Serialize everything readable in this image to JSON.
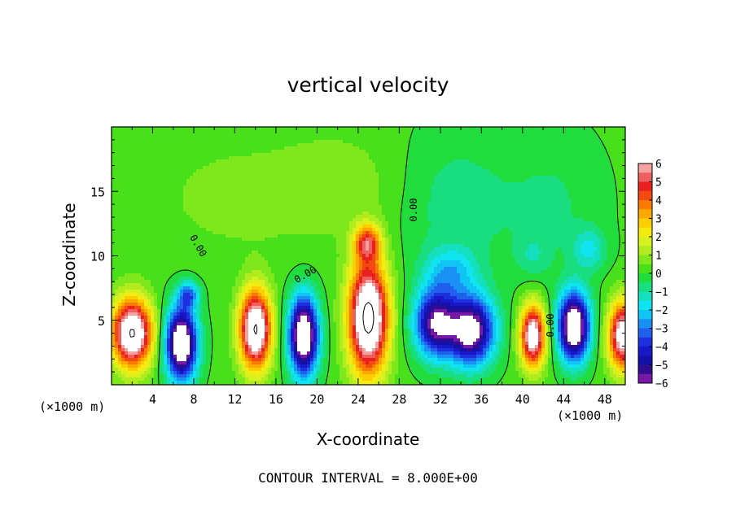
{
  "chart_data": {
    "type": "heatmap",
    "title": "vertical velocity",
    "xlabel": "X-coordinate",
    "ylabel": "Z-coordinate",
    "x_units": "(×1000 m)",
    "y_units": "(×1000 m)",
    "xlim": [
      0,
      50
    ],
    "ylim": [
      0,
      20
    ],
    "x_ticks": [
      4,
      8,
      12,
      16,
      20,
      24,
      28,
      32,
      36,
      40,
      44,
      48
    ],
    "y_ticks": [
      5,
      10,
      15
    ],
    "grid": false,
    "colorbar": {
      "placement": "right",
      "range": [
        -6,
        6
      ],
      "ticks": [
        6,
        5,
        4,
        3,
        2,
        1,
        0,
        -1,
        -2,
        -3,
        -4,
        -5,
        -6
      ],
      "levels": [
        {
          "lo": 5.5,
          "hi": 6.0,
          "color": "#f4a3a3"
        },
        {
          "lo": 5.0,
          "hi": 5.5,
          "color": "#ee6060"
        },
        {
          "lo": 4.5,
          "hi": 5.0,
          "color": "#e82020"
        },
        {
          "lo": 4.0,
          "hi": 4.5,
          "color": "#f24a10"
        },
        {
          "lo": 3.5,
          "hi": 4.0,
          "color": "#f87a00"
        },
        {
          "lo": 3.0,
          "hi": 3.5,
          "color": "#fba800"
        },
        {
          "lo": 2.5,
          "hi": 3.0,
          "color": "#fccd00"
        },
        {
          "lo": 2.0,
          "hi": 2.5,
          "color": "#f4ec10"
        },
        {
          "lo": 1.5,
          "hi": 2.0,
          "color": "#d8f020"
        },
        {
          "lo": 1.0,
          "hi": 1.5,
          "color": "#b0ec1e"
        },
        {
          "lo": 0.5,
          "hi": 1.0,
          "color": "#7ee81c"
        },
        {
          "lo": 0.0,
          "hi": 0.5,
          "color": "#48e01a"
        },
        {
          "lo": -0.5,
          "hi": 0.0,
          "color": "#20dc3c"
        },
        {
          "lo": -1.0,
          "hi": -0.5,
          "color": "#18de80"
        },
        {
          "lo": -1.5,
          "hi": -1.0,
          "color": "#14e0c0"
        },
        {
          "lo": -2.0,
          "hi": -1.5,
          "color": "#10e4f0"
        },
        {
          "lo": -2.5,
          "hi": -2.0,
          "color": "#10c4f4"
        },
        {
          "lo": -3.0,
          "hi": -2.5,
          "color": "#1890f4"
        },
        {
          "lo": -3.5,
          "hi": -3.0,
          "color": "#2060ec"
        },
        {
          "lo": -4.0,
          "hi": -3.5,
          "color": "#1c30e0"
        },
        {
          "lo": -4.5,
          "hi": -4.0,
          "color": "#1818c8"
        },
        {
          "lo": -5.0,
          "hi": -4.5,
          "color": "#1410a8"
        },
        {
          "lo": -5.5,
          "hi": -5.0,
          "color": "#300c90"
        },
        {
          "lo": -6.0,
          "hi": -5.5,
          "color": "#7818a8"
        }
      ]
    },
    "contour_labels": [
      "0.00",
      "0.00",
      "0.00",
      "0.00",
      "0.00",
      "0.00"
    ],
    "footer": "CONTOUR INTERVAL = 8.000E+00",
    "field_cells": [
      {
        "x": 2.0,
        "z": 4.0,
        "w": 8.0,
        "sx": 1.9,
        "sz": 2.6
      },
      {
        "x": 6.8,
        "z": 3.2,
        "w": -8.0,
        "sx": 1.5,
        "sz": 2.8
      },
      {
        "x": 7.5,
        "z": 7.0,
        "w": -3.0,
        "sx": 1.0,
        "sz": 1.0
      },
      {
        "x": 14.0,
        "z": 4.3,
        "w": 8.0,
        "sx": 1.5,
        "sz": 3.0
      },
      {
        "x": 18.7,
        "z": 3.8,
        "w": -8.0,
        "sx": 1.4,
        "sz": 3.0
      },
      {
        "x": 25.0,
        "z": 5.2,
        "w": 8.5,
        "sx": 1.9,
        "sz": 4.3
      },
      {
        "x": 24.9,
        "z": 11.0,
        "w": 4.0,
        "sx": 1.3,
        "sz": 1.4
      },
      {
        "x": 31.5,
        "z": 4.8,
        "w": -6.0,
        "sx": 2.0,
        "sz": 2.6
      },
      {
        "x": 35.0,
        "z": 4.2,
        "w": -7.0,
        "sx": 2.2,
        "sz": 2.6
      },
      {
        "x": 33.0,
        "z": 8.8,
        "w": -2.0,
        "sx": 2.5,
        "sz": 1.8
      },
      {
        "x": 41.0,
        "z": 3.8,
        "w": 7.0,
        "sx": 1.2,
        "sz": 2.4
      },
      {
        "x": 45.0,
        "z": 4.5,
        "w": -8.0,
        "sx": 1.5,
        "sz": 2.6
      },
      {
        "x": 46.5,
        "z": 10.5,
        "w": -1.6,
        "sx": 1.6,
        "sz": 1.6
      },
      {
        "x": 49.8,
        "z": 3.8,
        "w": 7.0,
        "sx": 1.4,
        "sz": 2.6
      },
      {
        "x": 41.0,
        "z": 10.0,
        "w": -0.8,
        "sx": 1.6,
        "sz": 1.6
      },
      {
        "x": 33.5,
        "z": 14.0,
        "w": -0.9,
        "sx": 5.5,
        "sz": 6.0
      },
      {
        "x": 43.0,
        "z": 14.0,
        "w": -0.7,
        "sx": 5.0,
        "sz": 6.0
      },
      {
        "x": 12.0,
        "z": 14.5,
        "w": 0.6,
        "sx": 7.0,
        "sz": 4.0
      },
      {
        "x": 22.0,
        "z": 15.5,
        "w": 0.7,
        "sx": 6.0,
        "sz": 4.0
      }
    ]
  }
}
